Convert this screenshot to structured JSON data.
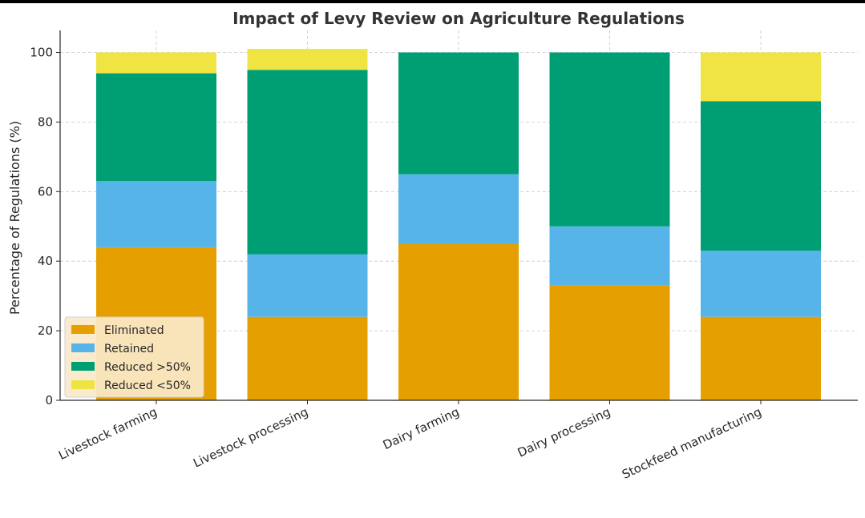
{
  "chart_data": {
    "type": "bar",
    "stacked": true,
    "title": "Impact of Levy Review on Agriculture Regulations",
    "xlabel": "",
    "ylabel": "Percentage of Regulations (%)",
    "ylim": [
      0,
      106
    ],
    "yticks": [
      0,
      20,
      40,
      60,
      80,
      100
    ],
    "grid": true,
    "legend_position": "lower-left",
    "categories": [
      "Livestock farming",
      "Livestock processing",
      "Dairy farming",
      "Dairy processing",
      "Stockfeed manufacturing"
    ],
    "series": [
      {
        "name": "Eliminated",
        "color": "#E69F00",
        "values": [
          44,
          24,
          45,
          33,
          24
        ]
      },
      {
        "name": "Retained",
        "color": "#56B4E9",
        "values": [
          19,
          18,
          20,
          17,
          19
        ]
      },
      {
        "name": "Reduced >50%",
        "color": "#009E73",
        "values": [
          31,
          53,
          35,
          50,
          43
        ]
      },
      {
        "name": "Reduced <50%",
        "color": "#F0E442",
        "values": [
          6,
          6,
          0,
          0,
          14
        ]
      }
    ]
  }
}
